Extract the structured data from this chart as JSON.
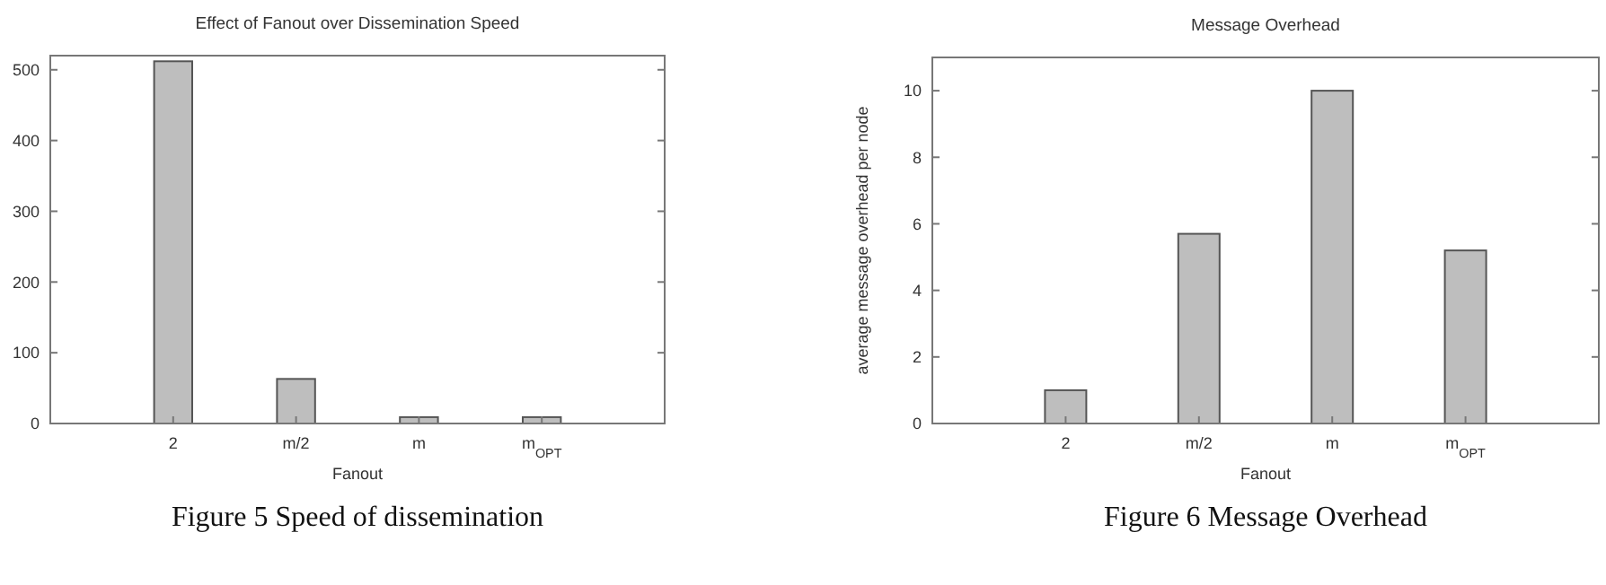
{
  "chart_data": [
    {
      "type": "bar",
      "title": "Effect of Fanout over Dissemination Speed",
      "xlabel": "Fanout",
      "categories": [
        "2",
        "m/2",
        "m",
        "m$_{OPT}$"
      ],
      "values": [
        512,
        63,
        9,
        9
      ],
      "color": "#bebebe",
      "ylim": [
        0,
        520
      ],
      "yticks": [
        0,
        100,
        200,
        300,
        400,
        500
      ],
      "grid": false,
      "annotations": [
        "Figure 5 Speed of dissemination"
      ]
    },
    {
      "type": "bar",
      "title": "Message Overhead",
      "xlabel": "Fanout",
      "ylabel": "average message overhead per node",
      "categories": [
        "2",
        "m/2",
        "m",
        "m$_{OPT}$"
      ],
      "values": [
        1.0,
        5.7,
        10,
        5.2
      ],
      "color": "#bebebe",
      "ylim": [
        0,
        11
      ],
      "yticks": [
        0,
        2,
        4,
        6,
        8,
        10
      ],
      "grid": false,
      "annotations": [
        "Figure 6 Message Overhead"
      ]
    }
  ]
}
